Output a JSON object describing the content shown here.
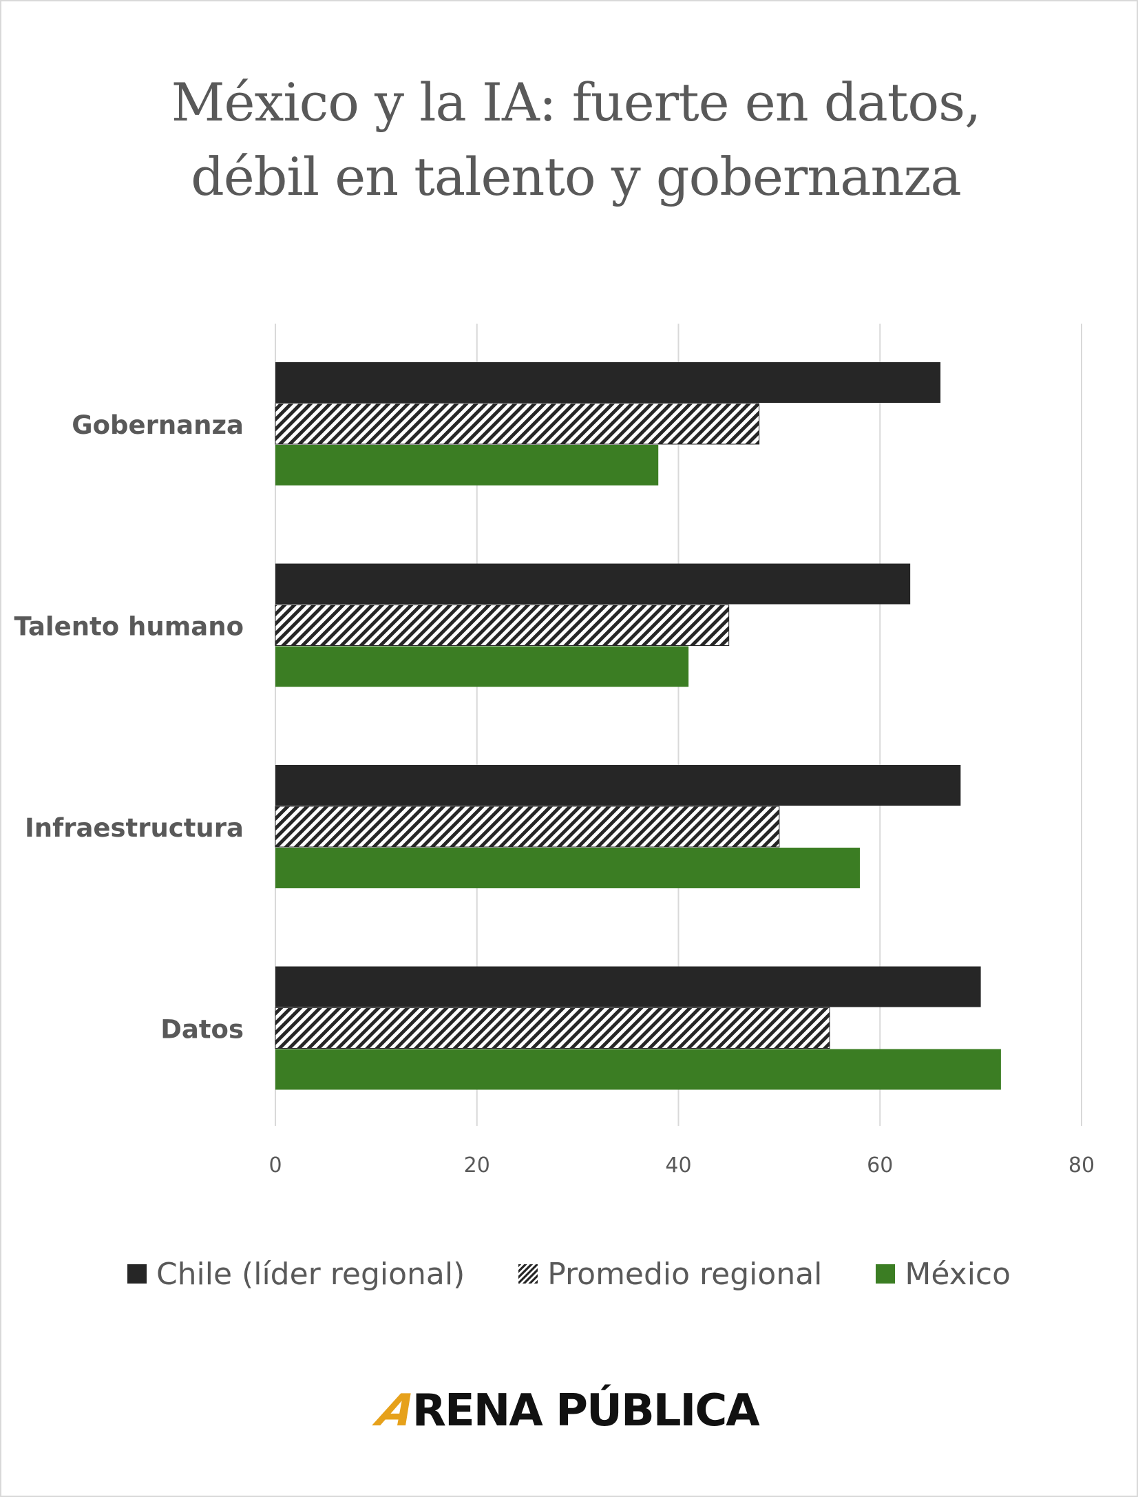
{
  "chart_data": {
    "type": "bar",
    "orientation": "horizontal",
    "title_lines": [
      "México y la IA: fuerte en datos,",
      "débil en talento y gobernanza"
    ],
    "categories": [
      "Gobernanza",
      "Talento humano",
      "Infraestructura",
      "Datos"
    ],
    "series": [
      {
        "name": "Chile (líder regional)",
        "values": [
          66,
          63,
          68,
          70
        ],
        "color": "#262626",
        "pattern": "solid"
      },
      {
        "name": "Promedio regional",
        "values": [
          48,
          45,
          50,
          55
        ],
        "color": "#262626",
        "pattern": "diagonal-hatch"
      },
      {
        "name": "México",
        "values": [
          38,
          41,
          58,
          72
        ],
        "color": "#3b7d23",
        "pattern": "solid"
      }
    ],
    "xlim": [
      0,
      80
    ],
    "xticks": [
      "0",
      "20",
      "40",
      "60",
      "80"
    ],
    "grid": "vertical",
    "legend": "bottom"
  },
  "brand": {
    "logo_text_a": "A",
    "logo_text_rest": "RENA PÚBLICA",
    "accent_color": "#e6a11b"
  }
}
